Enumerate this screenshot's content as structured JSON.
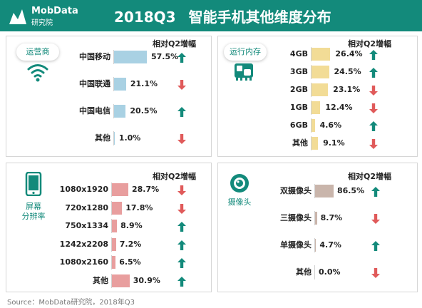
{
  "header": {
    "logo_name": "MobData",
    "logo_sub": "研究院",
    "title_quarter": "2018Q3",
    "title_text": "智能手机其他维度分布"
  },
  "colors": {
    "teal": "#138a7b",
    "up": "#138a7b",
    "down": "#e05a5a"
  },
  "panels": {
    "carrier": {
      "label": "运营商",
      "icon": "wifi-icon",
      "column_header": "相对Q2增幅",
      "bar_color": "#a9d1e3",
      "rows": [
        {
          "label": "中国移动",
          "value": "57.5%",
          "pct": 57.5,
          "trend": "up"
        },
        {
          "label": "中国联通",
          "value": "21.1%",
          "pct": 21.1,
          "trend": "down"
        },
        {
          "label": "中国电信",
          "value": "20.5%",
          "pct": 20.5,
          "trend": "up"
        },
        {
          "label": "其他",
          "value": "1.0%",
          "pct": 1.0,
          "trend": "down"
        }
      ]
    },
    "memory": {
      "label": "运行内存",
      "icon": "memory-chip-icon",
      "column_header": "相对Q2增幅",
      "bar_color": "#f2dc96",
      "rows": [
        {
          "label": "4GB",
          "value": "26.4%",
          "pct": 26.4,
          "trend": "up"
        },
        {
          "label": "3GB",
          "value": "24.5%",
          "pct": 24.5,
          "trend": "up"
        },
        {
          "label": "2GB",
          "value": "23.1%",
          "pct": 23.1,
          "trend": "down"
        },
        {
          "label": "1GB",
          "value": "12.4%",
          "pct": 12.4,
          "trend": "down"
        },
        {
          "label": "6GB",
          "value": "4.6%",
          "pct": 4.6,
          "trend": "up"
        },
        {
          "label": "其他",
          "value": "9.1%",
          "pct": 9.1,
          "trend": "down"
        }
      ]
    },
    "resolution": {
      "label_line1": "屏幕",
      "label_line2": "分辨率",
      "icon": "smartphone-icon",
      "column_header": "相对Q2增幅",
      "bar_color": "#e89e9e",
      "rows": [
        {
          "label": "1080x1920",
          "value": "28.7%",
          "pct": 28.7,
          "trend": "down"
        },
        {
          "label": "720x1280",
          "value": "17.8%",
          "pct": 17.8,
          "trend": "down"
        },
        {
          "label": "750x1334",
          "value": "8.9%",
          "pct": 8.9,
          "trend": "up"
        },
        {
          "label": "1242x2208",
          "value": "7.2%",
          "pct": 7.2,
          "trend": "up"
        },
        {
          "label": "1080x2160",
          "value": "6.5%",
          "pct": 6.5,
          "trend": "up"
        },
        {
          "label": "其他",
          "value": "30.9%",
          "pct": 30.9,
          "trend": "up"
        }
      ]
    },
    "camera": {
      "label": "摄像头",
      "icon": "camera-lens-icon",
      "column_header": "相对Q2增幅",
      "bar_color": "#c9b5ab",
      "rows": [
        {
          "label": "双摄像头",
          "value": "86.5%",
          "pct": 86.5,
          "trend": "up"
        },
        {
          "label": "三摄像头",
          "value": "8.7%",
          "pct": 8.7,
          "trend": "down"
        },
        {
          "label": "单摄像头",
          "value": "4.7%",
          "pct": 4.7,
          "trend": "up"
        },
        {
          "label": "其他",
          "value": "0.0%",
          "pct": 0.0,
          "trend": "down"
        }
      ]
    }
  },
  "source": "Source：MobData研究院，2018年Q3"
}
